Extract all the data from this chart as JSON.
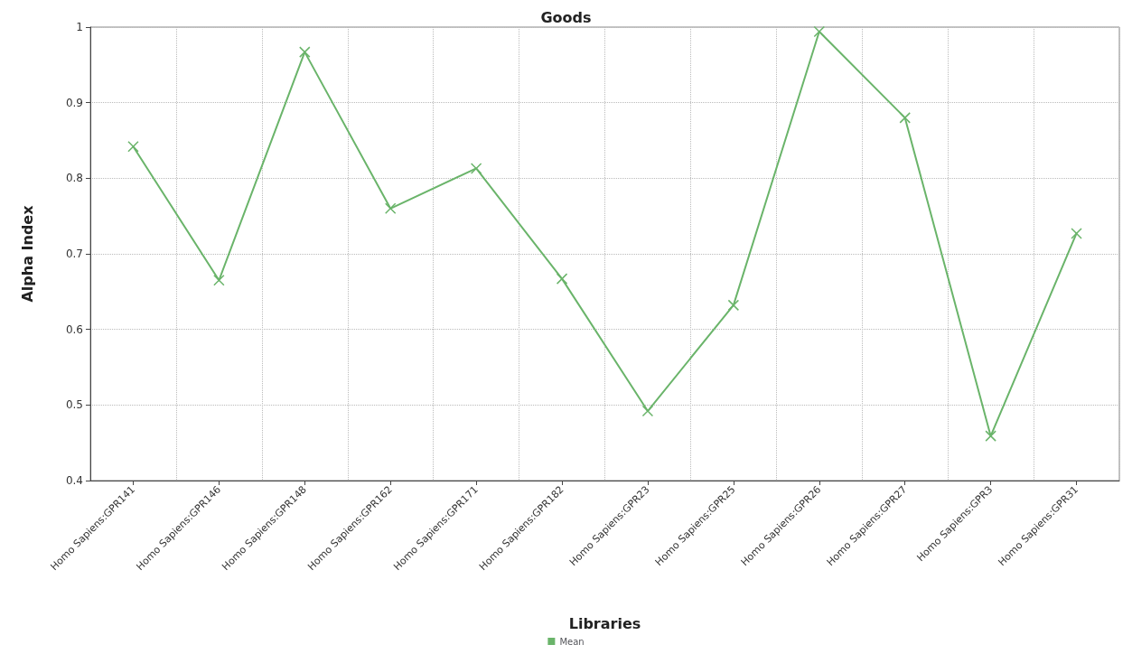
{
  "chart_data": {
    "type": "line",
    "title": "Goods",
    "xlabel": "Libraries",
    "ylabel": "Alpha Index",
    "categories": [
      "Homo Sapiens:GPR141",
      "Homo Sapiens:GPR146",
      "Homo Sapiens:GPR148",
      "Homo Sapiens:GPR162",
      "Homo Sapiens:GPR171",
      "Homo Sapiens:GPR182",
      "Homo Sapiens:GPR23",
      "Homo Sapiens:GPR25",
      "Homo Sapiens:GPR26",
      "Homo Sapiens:GPR27",
      "Homo Sapiens:GPR3",
      "Homo Sapiens:GPR31"
    ],
    "series": [
      {
        "name": "Mean",
        "color": "#6ab46a",
        "values": [
          0.842,
          0.665,
          0.967,
          0.76,
          0.813,
          0.667,
          0.492,
          0.632,
          0.994,
          0.88,
          0.459,
          0.727
        ]
      }
    ],
    "ylim": [
      0.4,
      1
    ],
    "yticks": [
      0.4,
      0.5,
      0.6,
      0.7,
      0.8,
      0.9,
      1
    ],
    "grid": true,
    "legend": "bottom",
    "marker": "cross",
    "line_style": "solid"
  }
}
